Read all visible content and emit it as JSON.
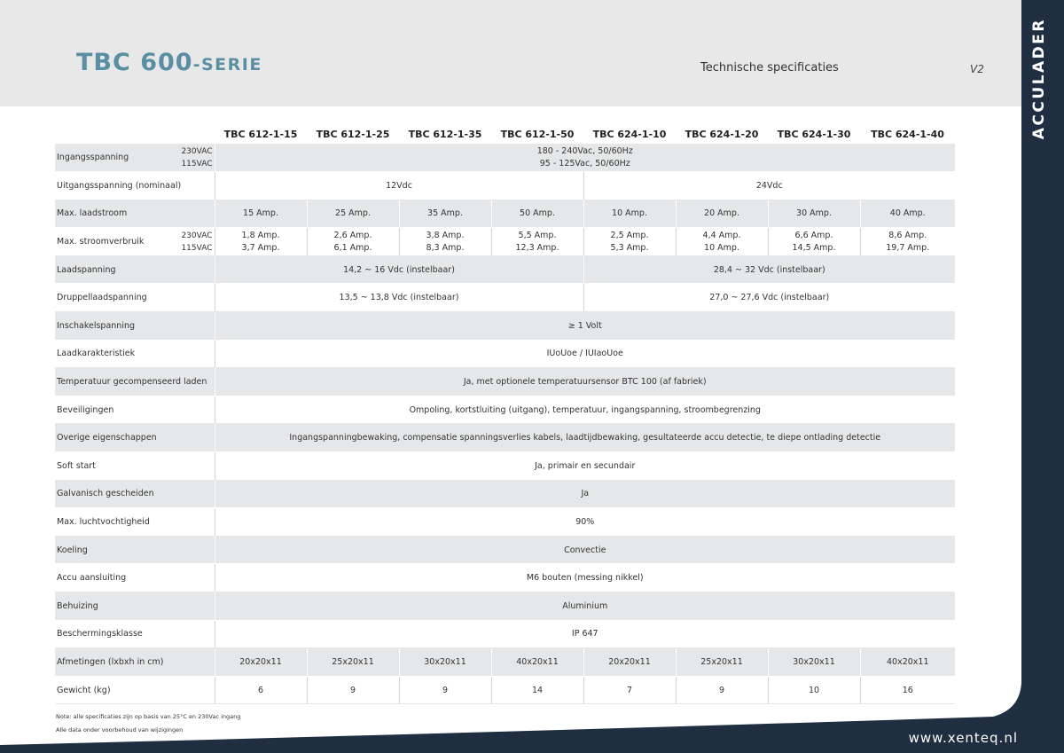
{
  "header": {
    "title_big": "TBC 600",
    "title_small": "-SERIE",
    "subtitle": "Technische specificaties",
    "version": "V2"
  },
  "side_tab": {
    "label": "ACCULADER"
  },
  "footer": {
    "website": "www.xenteq.nl",
    "note1": "Note: alle specificaties zijn op basis van 25°C en 230Vac ingang",
    "note2": "Alle data onder voorbehoud van wijzigingen"
  },
  "table": {
    "models": [
      "TBC 612-1-15",
      "TBC 612-1-25",
      "TBC 612-1-35",
      "TBC 612-1-50",
      "TBC 624-1-10",
      "TBC 624-1-20",
      "TBC 624-1-30",
      "TBC 624-1-40"
    ],
    "rows": {
      "ingang": {
        "label": "Ingangsspanning",
        "sub1": "230VAC",
        "sub2": "115VAC",
        "val1": "180 - 240Vac, 50/60Hz",
        "val2": "95 - 125Vac, 50/60Hz"
      },
      "uitgang": {
        "label": "Uitgangsspanning (nominaal)",
        "v12": "12Vdc",
        "v24": "24Vdc"
      },
      "laadstroom": {
        "label": "Max. laadstroom",
        "values": [
          "15 Amp.",
          "25 Amp.",
          "35 Amp.",
          "50 Amp.",
          "10 Amp.",
          "20 Amp.",
          "30 Amp.",
          "40 Amp."
        ]
      },
      "verbruik": {
        "label": "Max. stroomverbruik",
        "sub1": "230VAC",
        "sub2": "115VAC",
        "values230": [
          "1,8 Amp.",
          "2,6 Amp.",
          "3,8 Amp.",
          "5,5 Amp.",
          "2,5 Amp.",
          "4,4 Amp.",
          "6,6 Amp.",
          "8,6 Amp."
        ],
        "values115": [
          "3,7 Amp.",
          "6,1 Amp.",
          "8,3 Amp.",
          "12,3 Amp.",
          "5,3 Amp.",
          "10 Amp.",
          "14,5 Amp.",
          "19,7 Amp."
        ]
      },
      "laadspanning": {
        "label": "Laadspanning",
        "v12": "14,2 ~ 16 Vdc (instelbaar)",
        "v24": "28,4 ~ 32 Vdc (instelbaar)"
      },
      "druppel": {
        "label": "Druppellaadspanning",
        "v12": "13,5 ~ 13,8 Vdc (instelbaar)",
        "v24": "27,0 ~ 27,6 Vdc (instelbaar)"
      },
      "inschakel": {
        "label": "Inschakelspanning",
        "value": "≥ 1 Volt"
      },
      "karakteristiek": {
        "label": "Laadkarakteristiek",
        "value": "IUoUoe / IUIaoUoe"
      },
      "temperatuur": {
        "label": "Temperatuur gecompenseerd laden",
        "value": "Ja, met optionele temperatuursensor BTC 100 (af fabriek)"
      },
      "beveiliging": {
        "label": "Beveiligingen",
        "value": "Ompoling, kortstluiting (uitgang), temperatuur, ingangspanning, stroombegrenzing"
      },
      "overige": {
        "label": "Overige eigenschappen",
        "value": "Ingangspanningbewaking, compensatie spanningsverlies kabels, laadtijdbewaking, gesultateerde accu detectie, te diepe ontlading detectie"
      },
      "softstart": {
        "label": "Soft start",
        "value": "Ja, primair en secundair"
      },
      "galvanisch": {
        "label": "Galvanisch gescheiden",
        "value": "Ja"
      },
      "vocht": {
        "label": "Max. luchtvochtigheid",
        "value": "90%"
      },
      "koeling": {
        "label": "Koeling",
        "value": "Convectie"
      },
      "aansluiting": {
        "label": "Accu aansluiting",
        "value": "M6 bouten (messing nikkel)"
      },
      "behuizing": {
        "label": "Behuizing",
        "value": "Aluminium"
      },
      "bescherming": {
        "label": "Beschermingsklasse",
        "value": "IP 647"
      },
      "afmeting": {
        "label": "Afmetingen (lxbxh in cm)",
        "values": [
          "20x20x11",
          "25x20x11",
          "30x20x11",
          "40x20x11",
          "20x20x11",
          "25x20x11",
          "30x20x11",
          "40x20x11"
        ]
      },
      "gewicht": {
        "label": "Gewicht (kg)",
        "values": [
          "6",
          "9",
          "9",
          "14",
          "7",
          "9",
          "10",
          "16"
        ]
      }
    }
  }
}
